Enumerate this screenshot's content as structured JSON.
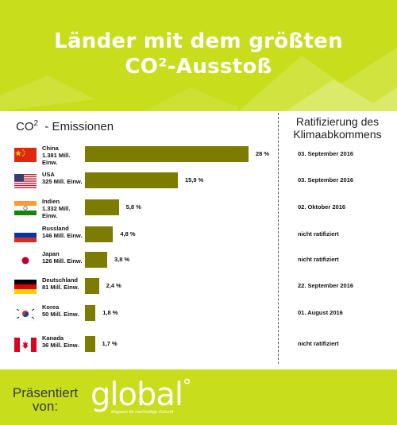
{
  "title": {
    "line1": "Länder mit dem größten",
    "line2": "CO²-Ausstoß"
  },
  "emissions_header": {
    "text": "CO",
    "sup": "2",
    "rest": "  - Emissionen"
  },
  "ratification_header": {
    "line1": "Ratifizierung des",
    "line2": "Klimaabkommens"
  },
  "colors": {
    "accent": "#c8dd1c",
    "bar": "#7c7c00"
  },
  "rows": [
    {
      "flag": "china-flag",
      "country": "China",
      "population": "1.381 Mill.",
      "population2": "Einw.",
      "emission_label": "28 %",
      "ratification": "03. September 2016"
    },
    {
      "flag": "usa-flag",
      "country": "USA",
      "population": "325 Mill. Einw.",
      "population2": "",
      "emission_label": "15,9 %",
      "ratification": "03. September 2016"
    },
    {
      "flag": "india-flag",
      "country": "Indien",
      "population": "1.332 Mill.",
      "population2": "Einw.",
      "emission_label": "5,8 %",
      "ratification": "02. Oktober 2016"
    },
    {
      "flag": "russia-flag",
      "country": "Russland",
      "population": "146 Mill. Einw.",
      "population2": "",
      "emission_label": "4,8 %",
      "ratification": "nicht ratifiziert"
    },
    {
      "flag": "japan-flag",
      "country": "Japan",
      "population": "126 Mill. Einw.",
      "population2": "",
      "emission_label": "3,8 %",
      "ratification": "nicht ratifiziert"
    },
    {
      "flag": "germany-flag",
      "country": "Deutschland",
      "population": "81 Mill. Einw.",
      "population2": "",
      "emission_label": "2,4 %",
      "ratification": "22. September 2016"
    },
    {
      "flag": "korea-flag",
      "country": "Korea",
      "population": "50 Mill. Einw.",
      "population2": "",
      "emission_label": "1,8 %",
      "ratification": "01. August 2016"
    },
    {
      "flag": "canada-flag",
      "country": "Kanada",
      "population": "36 Mill. Einw.",
      "population2": "",
      "emission_label": "1,7 %",
      "ratification": "nicht ratifiziert"
    }
  ],
  "chart_data": {
    "type": "bar",
    "orientation": "horizontal",
    "categories": [
      "China",
      "USA",
      "Indien",
      "Russland",
      "Japan",
      "Deutschland",
      "Korea",
      "Kanada"
    ],
    "values": [
      28,
      15.9,
      5.8,
      4.8,
      3.8,
      2.4,
      1.8,
      1.7
    ],
    "value_labels": [
      "28 %",
      "15,9 %",
      "5,8 %",
      "4,8 %",
      "3,8 %",
      "2,4 %",
      "1,8 %",
      "1,7 %"
    ],
    "title": "Länder mit dem größten CO²-Ausstoß",
    "xlabel": "",
    "ylabel": "",
    "grid": false
  },
  "footer": {
    "presented_line1": "Präsentiert",
    "presented_line2": "von:",
    "logo": "global",
    "logo_mark": "°",
    "tagline": "Magazin für nachhaltige Zukunft"
  }
}
